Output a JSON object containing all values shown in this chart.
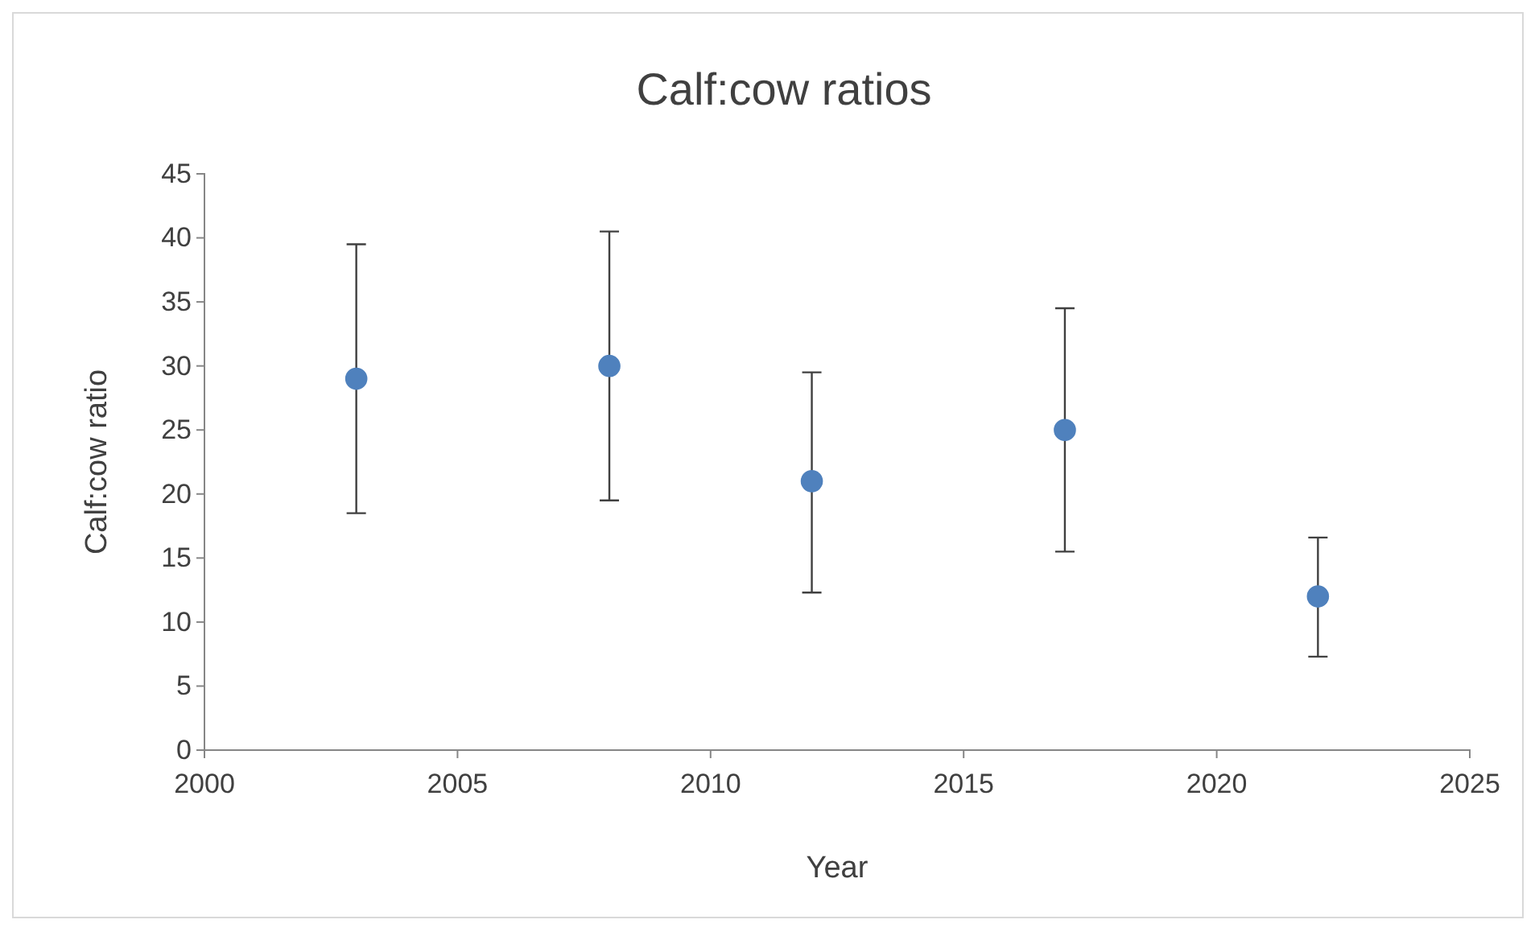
{
  "chart_data": {
    "type": "scatter",
    "title": "Calf:cow ratios",
    "xlabel": "Year",
    "ylabel": "Calf:cow ratio",
    "x": [
      2003,
      2008,
      2012,
      2017,
      2022
    ],
    "series": [
      {
        "color": "#4f81bd",
        "values": [
          29,
          30,
          21,
          25,
          12
        ],
        "errors": [
          [
            18.5,
            39.5
          ],
          [
            19.5,
            40.5
          ],
          [
            12.3,
            29.5
          ],
          [
            15.5,
            34.5
          ],
          [
            7.3,
            16.6
          ]
        ]
      }
    ],
    "xlim": [
      2000,
      2025
    ],
    "xticks": [
      2000,
      2005,
      2010,
      2015,
      2020,
      2025
    ],
    "ylim": [
      0,
      45
    ],
    "yticks": [
      0,
      5,
      10,
      15,
      20,
      25,
      30,
      35,
      40,
      45
    ],
    "grid": false,
    "marker": "circle"
  }
}
